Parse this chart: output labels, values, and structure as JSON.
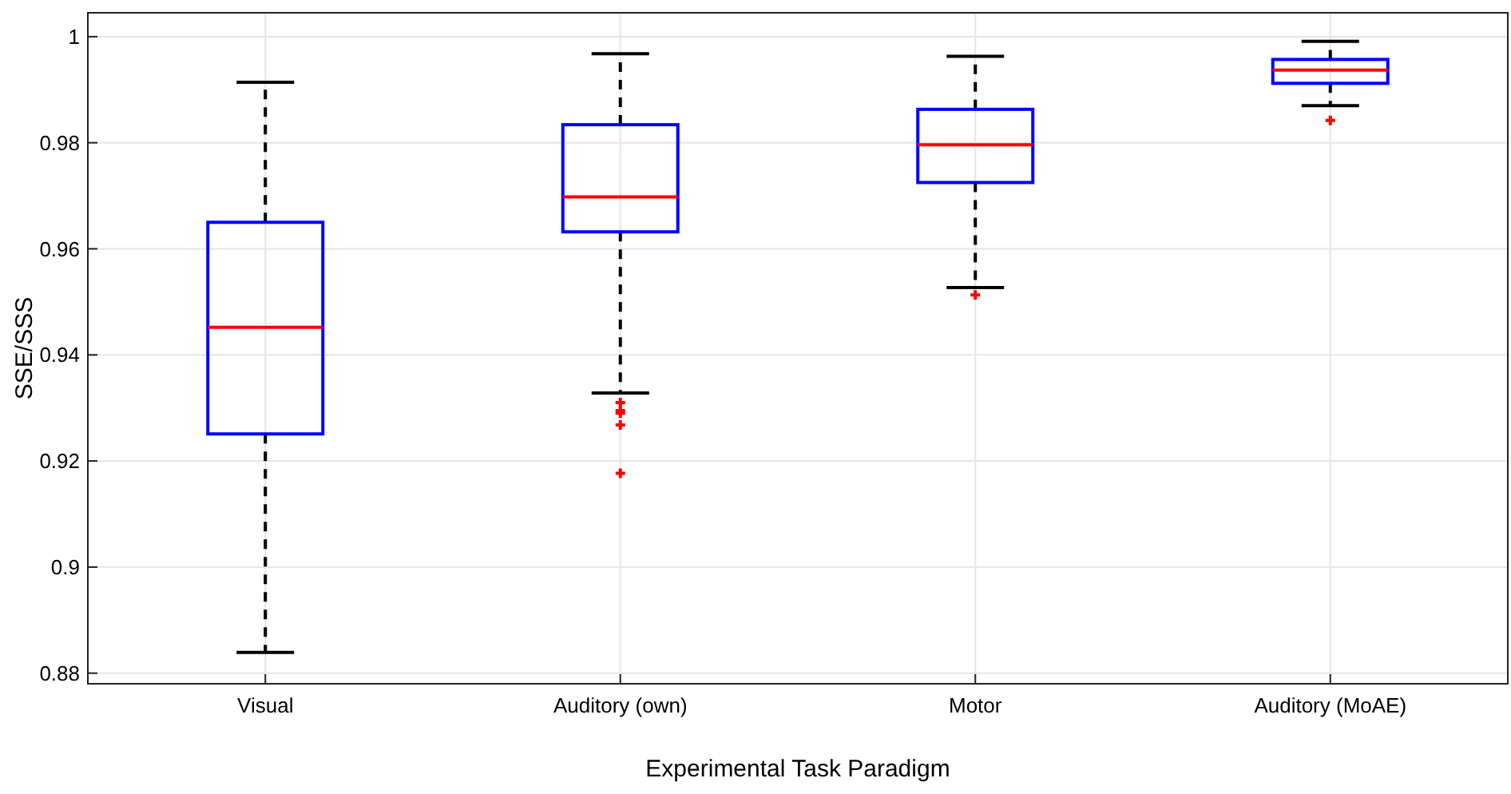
{
  "chart_data": {
    "type": "box",
    "xlabel": "Experimental Task Paradigm",
    "ylabel": "SSE/SSS",
    "categories": [
      "Visual",
      "Auditory (own)",
      "Motor",
      "Auditory (MoAE)"
    ],
    "boxes": [
      {
        "low": 0.8839,
        "q1": 0.9251,
        "median": 0.9452,
        "q3": 0.965,
        "high": 0.9914
      },
      {
        "low": 0.9328,
        "q1": 0.9632,
        "median": 0.9698,
        "q3": 0.9834,
        "high": 0.9968,
        "outliers": [
          0.931,
          0.9295,
          0.929,
          0.9268,
          0.9177
        ]
      },
      {
        "low": 0.9527,
        "q1": 0.9725,
        "median": 0.9796,
        "q3": 0.9863,
        "high": 0.9963,
        "outliers": [
          0.9513
        ]
      },
      {
        "low": 0.987,
        "q1": 0.9912,
        "median": 0.9937,
        "q3": 0.9957,
        "high": 0.9991,
        "outliers": [
          0.9842
        ]
      }
    ],
    "color": "#0000ff",
    "ylim": [
      0.878,
      1.0045
    ],
    "yticks": [
      0.88,
      0.9,
      0.92,
      0.94,
      0.96,
      0.98,
      1
    ],
    "grid": true
  }
}
